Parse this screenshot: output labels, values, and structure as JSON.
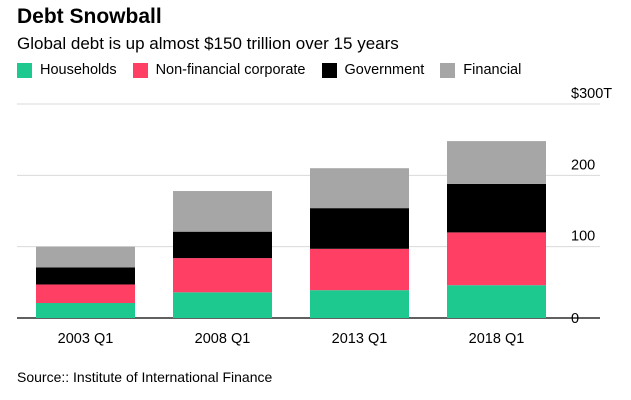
{
  "header": {
    "title": "Debt Snowball",
    "subtitle": "Global debt is up almost $150 trillion over 15 years"
  },
  "footer": {
    "source": "Source:: Institute of International Finance"
  },
  "chart_data": {
    "type": "bar",
    "stacked": true,
    "title": "Debt Snowball",
    "subtitle": "Global debt is up almost $150 trillion over 15 years",
    "categories": [
      "2003 Q1",
      "2008 Q1",
      "2013 Q1",
      "2018 Q1"
    ],
    "series": [
      {
        "name": "Households",
        "color": "#1ec98f",
        "values": [
          21,
          36,
          39,
          46
        ]
      },
      {
        "name": "Non-financial corporate",
        "color": "#ff3f64",
        "values": [
          26,
          48,
          58,
          74
        ]
      },
      {
        "name": "Government",
        "color": "#000000",
        "values": [
          24,
          37,
          57,
          68
        ]
      },
      {
        "name": "Financial",
        "color": "#a6a6a6",
        "values": [
          29,
          57,
          56,
          60
        ]
      }
    ],
    "y_ticks": [
      "0",
      "100",
      "200",
      "$300T"
    ],
    "y_tick_values": [
      0,
      100,
      200,
      300
    ],
    "ylim": [
      0,
      300
    ],
    "grid": true,
    "legend_position": "top",
    "axis_position": "right",
    "xlabel": "",
    "ylabel": ""
  }
}
